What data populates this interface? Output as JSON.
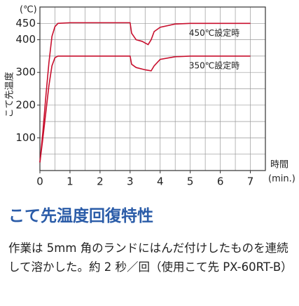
{
  "chart_data": {
    "type": "line",
    "y_unit": "(℃)",
    "ylabel": "こて先温度",
    "xlabel": "時間",
    "x_unit": "(min.)",
    "xlim": [
      0,
      7.5
    ],
    "ylim": [
      0,
      500
    ],
    "xticks": [
      0,
      1,
      2,
      3,
      4,
      5,
      6,
      7
    ],
    "yticks": [
      100,
      200,
      300,
      400,
      450
    ],
    "grid": true,
    "x_grid_step": 0.5,
    "y_grid_step": 50,
    "series": [
      {
        "name": "450℃設定時",
        "color": "#c8102e",
        "x": [
          0,
          0.1,
          0.2,
          0.3,
          0.4,
          0.5,
          0.6,
          1,
          2,
          3,
          3.05,
          3.2,
          3.4,
          3.6,
          3.7,
          3.8,
          4,
          4.5,
          5,
          6,
          7
        ],
        "values": [
          25,
          120,
          230,
          330,
          410,
          440,
          450,
          452,
          452,
          452,
          420,
          400,
          395,
          385,
          400,
          425,
          438,
          448,
          450,
          450,
          450
        ]
      },
      {
        "name": "350℃設定時",
        "color": "#c8102e",
        "x": [
          0,
          0.1,
          0.2,
          0.3,
          0.4,
          0.5,
          0.6,
          1,
          2,
          3,
          3.05,
          3.2,
          3.5,
          3.7,
          3.8,
          4,
          4.5,
          5,
          6,
          7
        ],
        "values": [
          25,
          100,
          180,
          260,
          320,
          345,
          350,
          350,
          350,
          350,
          325,
          315,
          308,
          305,
          320,
          340,
          348,
          350,
          350,
          350
        ]
      }
    ]
  },
  "caption": {
    "title": "こて先温度回復特性",
    "text": "作業は 5mm 角のランドにはんだ付けしたものを連続して溶かした。約 2 秒／回（使用こて先 PX-60RT-B）"
  }
}
